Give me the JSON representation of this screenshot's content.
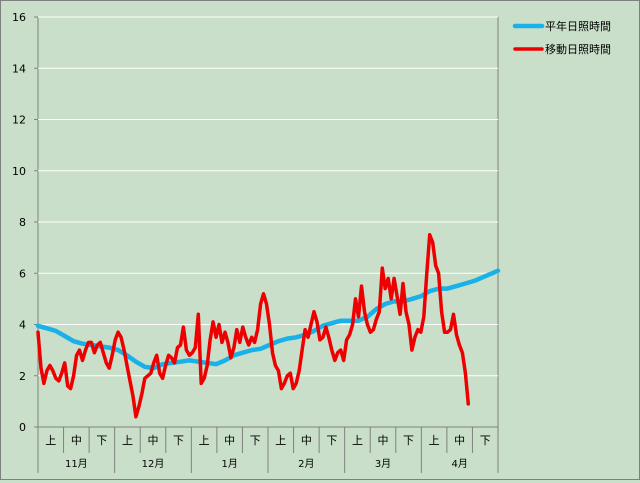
{
  "chart_data": {
    "type": "line",
    "y_axis": {
      "min": 0,
      "max": 16,
      "step": 2,
      "ticks": [
        "0",
        "2",
        "4",
        "6",
        "8",
        "10",
        "12",
        "14",
        "16"
      ]
    },
    "x_axis": {
      "sub_labels": [
        "上",
        "中",
        "下"
      ],
      "months": [
        "11月",
        "12月",
        "1月",
        "2月",
        "3月",
        "4月"
      ]
    },
    "legend": {
      "position": "top-right",
      "items": [
        "平年日照時間",
        "移動日照時間"
      ]
    },
    "grid": "horizontal",
    "colors": {
      "normal": "#1ab0e8",
      "moving": "#ee0000",
      "plot_bg": "#c9dfc9",
      "grid": "#ffffff"
    },
    "series": [
      {
        "name": "平年日照時間",
        "points": [
          [
            0,
            3.95
          ],
          [
            3,
            3.85
          ],
          [
            6,
            3.75
          ],
          [
            9,
            3.55
          ],
          [
            12,
            3.35
          ],
          [
            15,
            3.25
          ],
          [
            18,
            3.2
          ],
          [
            21,
            3.15
          ],
          [
            24,
            3.1
          ],
          [
            27,
            3.0
          ],
          [
            30,
            2.8
          ],
          [
            33,
            2.55
          ],
          [
            36,
            2.35
          ],
          [
            39,
            2.3
          ],
          [
            42,
            2.45
          ],
          [
            45,
            2.5
          ],
          [
            48,
            2.55
          ],
          [
            51,
            2.6
          ],
          [
            54,
            2.55
          ],
          [
            57,
            2.5
          ],
          [
            60,
            2.45
          ],
          [
            63,
            2.6
          ],
          [
            66,
            2.8
          ],
          [
            69,
            2.9
          ],
          [
            72,
            3.0
          ],
          [
            75,
            3.05
          ],
          [
            78,
            3.2
          ],
          [
            81,
            3.35
          ],
          [
            84,
            3.45
          ],
          [
            87,
            3.5
          ],
          [
            90,
            3.6
          ],
          [
            93,
            3.75
          ],
          [
            96,
            3.95
          ],
          [
            99,
            4.05
          ],
          [
            102,
            4.15
          ],
          [
            105,
            4.15
          ],
          [
            108,
            4.15
          ],
          [
            111,
            4.3
          ],
          [
            114,
            4.6
          ],
          [
            117,
            4.8
          ],
          [
            120,
            4.9
          ],
          [
            123,
            4.9
          ],
          [
            126,
            5.0
          ],
          [
            129,
            5.1
          ],
          [
            132,
            5.3
          ],
          [
            135,
            5.4
          ],
          [
            138,
            5.4
          ],
          [
            141,
            5.5
          ],
          [
            144,
            5.6
          ],
          [
            147,
            5.7
          ],
          [
            150,
            5.85
          ],
          [
            153,
            6.0
          ],
          [
            155,
            6.1
          ]
        ]
      },
      {
        "name": "移動日照時間",
        "points": [
          [
            0,
            3.7
          ],
          [
            1,
            2.3
          ],
          [
            2,
            1.7
          ],
          [
            3,
            2.2
          ],
          [
            4,
            2.4
          ],
          [
            5,
            2.2
          ],
          [
            6,
            1.9
          ],
          [
            7,
            1.8
          ],
          [
            8,
            2.1
          ],
          [
            9,
            2.5
          ],
          [
            10,
            1.6
          ],
          [
            11,
            1.5
          ],
          [
            12,
            2.0
          ],
          [
            13,
            2.8
          ],
          [
            14,
            3.0
          ],
          [
            15,
            2.6
          ],
          [
            16,
            3.0
          ],
          [
            17,
            3.3
          ],
          [
            18,
            3.3
          ],
          [
            19,
            2.9
          ],
          [
            20,
            3.2
          ],
          [
            21,
            3.3
          ],
          [
            22,
            2.9
          ],
          [
            23,
            2.5
          ],
          [
            24,
            2.3
          ],
          [
            25,
            2.8
          ],
          [
            26,
            3.4
          ],
          [
            27,
            3.7
          ],
          [
            28,
            3.5
          ],
          [
            29,
            3.0
          ],
          [
            30,
            2.4
          ],
          [
            31,
            1.8
          ],
          [
            32,
            1.2
          ],
          [
            33,
            0.4
          ],
          [
            34,
            0.8
          ],
          [
            35,
            1.3
          ],
          [
            36,
            1.9
          ],
          [
            37,
            2.0
          ],
          [
            38,
            2.1
          ],
          [
            39,
            2.5
          ],
          [
            40,
            2.8
          ],
          [
            41,
            2.1
          ],
          [
            42,
            1.9
          ],
          [
            43,
            2.4
          ],
          [
            44,
            2.8
          ],
          [
            45,
            2.7
          ],
          [
            46,
            2.5
          ],
          [
            47,
            3.1
          ],
          [
            48,
            3.2
          ],
          [
            49,
            3.9
          ],
          [
            50,
            3.0
          ],
          [
            51,
            2.8
          ],
          [
            52,
            2.9
          ],
          [
            53,
            3.1
          ],
          [
            54,
            4.4
          ],
          [
            55,
            1.7
          ],
          [
            56,
            1.9
          ],
          [
            57,
            2.4
          ],
          [
            58,
            3.4
          ],
          [
            59,
            4.1
          ],
          [
            60,
            3.5
          ],
          [
            61,
            4.0
          ],
          [
            62,
            3.3
          ],
          [
            63,
            3.7
          ],
          [
            64,
            3.3
          ],
          [
            65,
            2.7
          ],
          [
            66,
            3.1
          ],
          [
            67,
            3.8
          ],
          [
            68,
            3.3
          ],
          [
            69,
            3.9
          ],
          [
            70,
            3.5
          ],
          [
            71,
            3.2
          ],
          [
            72,
            3.5
          ],
          [
            73,
            3.3
          ],
          [
            74,
            3.8
          ],
          [
            75,
            4.8
          ],
          [
            76,
            5.2
          ],
          [
            77,
            4.8
          ],
          [
            78,
            4.0
          ],
          [
            79,
            2.9
          ],
          [
            80,
            2.4
          ],
          [
            81,
            2.2
          ],
          [
            82,
            1.5
          ],
          [
            83,
            1.7
          ],
          [
            84,
            2.0
          ],
          [
            85,
            2.1
          ],
          [
            86,
            1.5
          ],
          [
            87,
            1.7
          ],
          [
            88,
            2.2
          ],
          [
            89,
            3.0
          ],
          [
            90,
            3.8
          ],
          [
            91,
            3.5
          ],
          [
            92,
            4.0
          ],
          [
            93,
            4.5
          ],
          [
            94,
            4.1
          ],
          [
            95,
            3.4
          ],
          [
            96,
            3.5
          ],
          [
            97,
            3.9
          ],
          [
            98,
            3.5
          ],
          [
            99,
            3.0
          ],
          [
            100,
            2.6
          ],
          [
            101,
            2.9
          ],
          [
            102,
            3.0
          ],
          [
            103,
            2.6
          ],
          [
            104,
            3.4
          ],
          [
            105,
            3.6
          ],
          [
            106,
            4.0
          ],
          [
            107,
            5.0
          ],
          [
            108,
            4.3
          ],
          [
            109,
            5.5
          ],
          [
            110,
            4.5
          ],
          [
            111,
            4.0
          ],
          [
            112,
            3.7
          ],
          [
            113,
            3.8
          ],
          [
            114,
            4.2
          ],
          [
            115,
            4.5
          ],
          [
            116,
            6.2
          ],
          [
            117,
            5.4
          ],
          [
            118,
            5.8
          ],
          [
            119,
            5.0
          ],
          [
            120,
            5.8
          ],
          [
            121,
            5.1
          ],
          [
            122,
            4.4
          ],
          [
            123,
            5.6
          ],
          [
            124,
            4.5
          ],
          [
            125,
            4.0
          ],
          [
            126,
            3.0
          ],
          [
            127,
            3.5
          ],
          [
            128,
            3.8
          ],
          [
            129,
            3.7
          ],
          [
            130,
            4.3
          ],
          [
            131,
            6.0
          ],
          [
            132,
            7.5
          ],
          [
            133,
            7.2
          ],
          [
            134,
            6.3
          ],
          [
            135,
            6.0
          ],
          [
            136,
            4.5
          ],
          [
            137,
            3.7
          ],
          [
            138,
            3.7
          ],
          [
            139,
            3.8
          ],
          [
            140,
            4.4
          ],
          [
            141,
            3.6
          ],
          [
            142,
            3.2
          ],
          [
            143,
            2.9
          ],
          [
            144,
            2.1
          ],
          [
            145,
            0.9
          ]
        ]
      }
    ]
  }
}
